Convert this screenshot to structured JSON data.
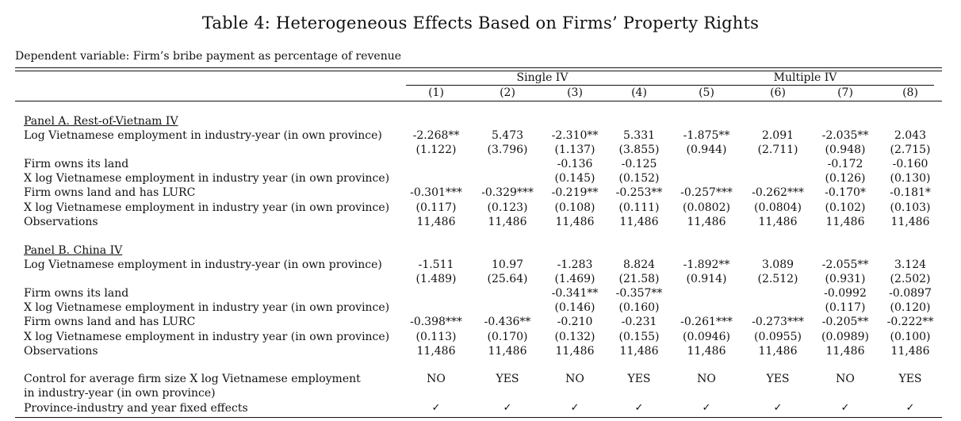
{
  "title": "Table 4: Heterogeneous Effects Based on Firms’ Property Rights",
  "dependent_variable": "Dependent variable: Firm’s bribe payment as percentage of revenue",
  "column_groups": [
    "Single IV",
    "Multiple IV"
  ],
  "columns": [
    "(1)",
    "(2)",
    "(3)",
    "(4)",
    "(5)",
    "(6)",
    "(7)",
    "(8)"
  ],
  "panelA": {
    "title": "Panel A. Rest-of-Vietnam IV",
    "rows": [
      {
        "label": "Log Vietnamese employment in industry-year (in own province)",
        "values": [
          "-2.268**",
          "5.473",
          "-2.310**",
          "5.331",
          "-1.875**",
          "2.091",
          "-2.035**",
          "2.043"
        ]
      },
      {
        "label": "",
        "values": [
          "(1.122)",
          "(3.796)",
          "(1.137)",
          "(3.855)",
          "(0.944)",
          "(2.711)",
          "(0.948)",
          "(2.715)"
        ]
      },
      {
        "label": "Firm owns its land",
        "values": [
          "",
          "",
          "-0.136",
          "-0.125",
          "",
          "",
          "-0.172",
          "-0.160"
        ]
      },
      {
        "label": "X log Vietnamese employment in industry year (in own province)",
        "values": [
          "",
          "",
          "(0.145)",
          "(0.152)",
          "",
          "",
          "(0.126)",
          "(0.130)"
        ]
      },
      {
        "label": "Firm owns land and has LURC",
        "values": [
          "-0.301***",
          "-0.329***",
          "-0.219**",
          "-0.253**",
          "-0.257***",
          "-0.262***",
          "-0.170*",
          "-0.181*"
        ]
      },
      {
        "label": "X log Vietnamese employment in industry year (in own province)",
        "values": [
          "(0.117)",
          "(0.123)",
          "(0.108)",
          "(0.111)",
          "(0.0802)",
          "(0.0804)",
          "(0.102)",
          "(0.103)"
        ]
      },
      {
        "label": "Observations",
        "values": [
          "11,486",
          "11,486",
          "11,486",
          "11,486",
          "11,486",
          "11,486",
          "11,486",
          "11,486"
        ]
      }
    ]
  },
  "panelB": {
    "title": "Panel B. China IV",
    "rows": [
      {
        "label": "Log Vietnamese employment in industry-year (in own province)",
        "values": [
          "-1.511",
          "10.97",
          "-1.283",
          "8.824",
          "-1.892**",
          "3.089",
          "-2.055**",
          "3.124"
        ]
      },
      {
        "label": "",
        "values": [
          "(1.489)",
          "(25.64)",
          "(1.469)",
          "(21.58)",
          "(0.914)",
          "(2.512)",
          "(0.931)",
          "(2.502)"
        ]
      },
      {
        "label": "Firm owns its land",
        "values": [
          "",
          "",
          "-0.341**",
          "-0.357**",
          "",
          "",
          "-0.0992",
          "-0.0897"
        ]
      },
      {
        "label": "X log Vietnamese employment in industry year (in own province)",
        "values": [
          "",
          "",
          "(0.146)",
          "(0.160)",
          "",
          "",
          "(0.117)",
          "(0.120)"
        ]
      },
      {
        "label": "Firm owns land and has LURC",
        "values": [
          "-0.398***",
          "-0.436**",
          "-0.210",
          "-0.231",
          "-0.261***",
          "-0.273***",
          "-0.205**",
          "-0.222**"
        ]
      },
      {
        "label": "X log Vietnamese employment in industry year (in own province)",
        "values": [
          "(0.113)",
          "(0.170)",
          "(0.132)",
          "(0.155)",
          "(0.0946)",
          "(0.0955)",
          "(0.0989)",
          "(0.100)"
        ]
      },
      {
        "label": "Observations",
        "values": [
          "11,486",
          "11,486",
          "11,486",
          "11,486",
          "11,486",
          "11,486",
          "11,486",
          "11,486"
        ]
      }
    ]
  },
  "controls": {
    "label_line1": "Control for average firm size X log Vietnamese employment",
    "label_line2": "in industry-year (in own province)",
    "values": [
      "NO",
      "YES",
      "NO",
      "YES",
      "NO",
      "YES",
      "NO",
      "YES"
    ]
  },
  "fixed_effects": {
    "label": "Province-industry and year fixed effects",
    "values": [
      "✓",
      "✓",
      "✓",
      "✓",
      "✓",
      "✓",
      "✓",
      "✓"
    ]
  }
}
